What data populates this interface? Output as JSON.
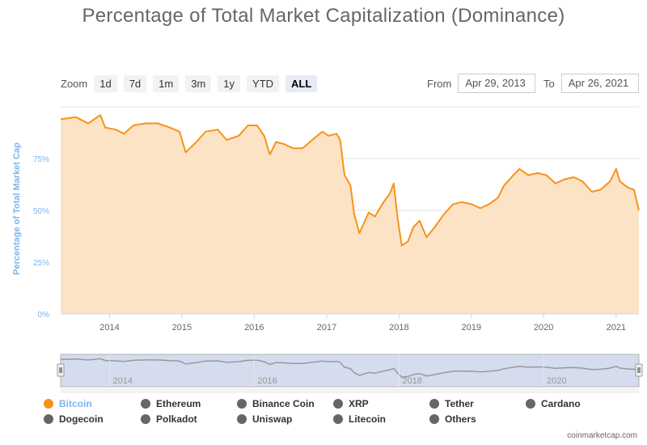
{
  "title": "Percentage of Total Market Capitalization (Dominance)",
  "zoom": {
    "label": "Zoom",
    "buttons": [
      "1d",
      "7d",
      "1m",
      "3m",
      "1y",
      "YTD",
      "ALL"
    ],
    "active": "ALL"
  },
  "range": {
    "from_label": "From",
    "from_value": "Apr 29, 2013",
    "to_label": "To",
    "to_value": "Apr 26, 2021"
  },
  "credit": "coinmarketcap.com",
  "colors": {
    "bitcoin_line": "#f7931a",
    "bitcoin_fill": "#fde3c6",
    "axis_label": "#7cb5ec",
    "navigator_mask": "#ccd6eb",
    "legend_inactive": "#666666"
  },
  "legend": {
    "items": [
      {
        "label": "Bitcoin",
        "active": true
      },
      {
        "label": "Ethereum",
        "active": false
      },
      {
        "label": "Binance Coin",
        "active": false
      },
      {
        "label": "XRP",
        "active": false
      },
      {
        "label": "Tether",
        "active": false
      },
      {
        "label": "Cardano",
        "active": false
      },
      {
        "label": "Dogecoin",
        "active": false
      },
      {
        "label": "Polkadot",
        "active": false
      },
      {
        "label": "Uniswap",
        "active": false
      },
      {
        "label": "Litecoin",
        "active": false
      },
      {
        "label": "Others",
        "active": false
      }
    ]
  },
  "chart_data": {
    "type": "area",
    "title": "Percentage of Total Market Capitalization (Dominance)",
    "ylabel": "Percentage of Total Market Cap",
    "xlabel": "",
    "ylim": [
      0,
      100
    ],
    "xlim": [
      "2013-04-29",
      "2021-04-26"
    ],
    "y_ticks": [
      "0%",
      "25%",
      "50%",
      "75%"
    ],
    "x_ticks": [
      "2014",
      "2015",
      "2016",
      "2017",
      "2018",
      "2019",
      "2020",
      "2021"
    ],
    "navigator_ticks": [
      "2014",
      "2016",
      "2018",
      "2020"
    ],
    "grid": true,
    "legend_position": "bottom",
    "series": [
      {
        "name": "Bitcoin",
        "points": [
          [
            "2013-04-29",
            94
          ],
          [
            "2013-07-15",
            95
          ],
          [
            "2013-09-15",
            92
          ],
          [
            "2013-11-15",
            96
          ],
          [
            "2013-12-10",
            90
          ],
          [
            "2014-02-01",
            89
          ],
          [
            "2014-03-15",
            87
          ],
          [
            "2014-05-01",
            91
          ],
          [
            "2014-07-01",
            92
          ],
          [
            "2014-09-01",
            92
          ],
          [
            "2014-11-01",
            90
          ],
          [
            "2014-12-20",
            88
          ],
          [
            "2015-01-20",
            78
          ],
          [
            "2015-03-15",
            83
          ],
          [
            "2015-05-01",
            88
          ],
          [
            "2015-07-01",
            89
          ],
          [
            "2015-08-15",
            84
          ],
          [
            "2015-10-15",
            86
          ],
          [
            "2015-12-01",
            91
          ],
          [
            "2016-01-15",
            91
          ],
          [
            "2016-02-20",
            86
          ],
          [
            "2016-03-20",
            77
          ],
          [
            "2016-04-20",
            83
          ],
          [
            "2016-06-01",
            82
          ],
          [
            "2016-07-15",
            80
          ],
          [
            "2016-09-01",
            80
          ],
          [
            "2016-11-01",
            85
          ],
          [
            "2016-12-10",
            88
          ],
          [
            "2017-01-10",
            86
          ],
          [
            "2017-02-20",
            87
          ],
          [
            "2017-03-10",
            84
          ],
          [
            "2017-04-01",
            67
          ],
          [
            "2017-05-01",
            62
          ],
          [
            "2017-05-20",
            48
          ],
          [
            "2017-06-15",
            39
          ],
          [
            "2017-08-01",
            49
          ],
          [
            "2017-09-01",
            47
          ],
          [
            "2017-10-15",
            54
          ],
          [
            "2017-11-15",
            58
          ],
          [
            "2017-12-05",
            63
          ],
          [
            "2017-12-25",
            46
          ],
          [
            "2018-01-15",
            33
          ],
          [
            "2018-02-15",
            35
          ],
          [
            "2018-03-15",
            42
          ],
          [
            "2018-04-15",
            45
          ],
          [
            "2018-05-20",
            37
          ],
          [
            "2018-07-01",
            42
          ],
          [
            "2018-08-15",
            48
          ],
          [
            "2018-10-01",
            53
          ],
          [
            "2018-11-15",
            54
          ],
          [
            "2019-01-01",
            53
          ],
          [
            "2019-02-15",
            51
          ],
          [
            "2019-04-01",
            53
          ],
          [
            "2019-05-15",
            56
          ],
          [
            "2019-06-15",
            62
          ],
          [
            "2019-08-01",
            67
          ],
          [
            "2019-09-01",
            70
          ],
          [
            "2019-10-15",
            67
          ],
          [
            "2019-12-01",
            68
          ],
          [
            "2020-01-15",
            67
          ],
          [
            "2020-03-01",
            63
          ],
          [
            "2020-04-15",
            65
          ],
          [
            "2020-06-01",
            66
          ],
          [
            "2020-07-15",
            64
          ],
          [
            "2020-09-01",
            59
          ],
          [
            "2020-10-15",
            60
          ],
          [
            "2020-12-01",
            64
          ],
          [
            "2021-01-01",
            70
          ],
          [
            "2021-01-20",
            64
          ],
          [
            "2021-03-01",
            61
          ],
          [
            "2021-04-01",
            60
          ],
          [
            "2021-04-26",
            50
          ]
        ]
      }
    ]
  }
}
